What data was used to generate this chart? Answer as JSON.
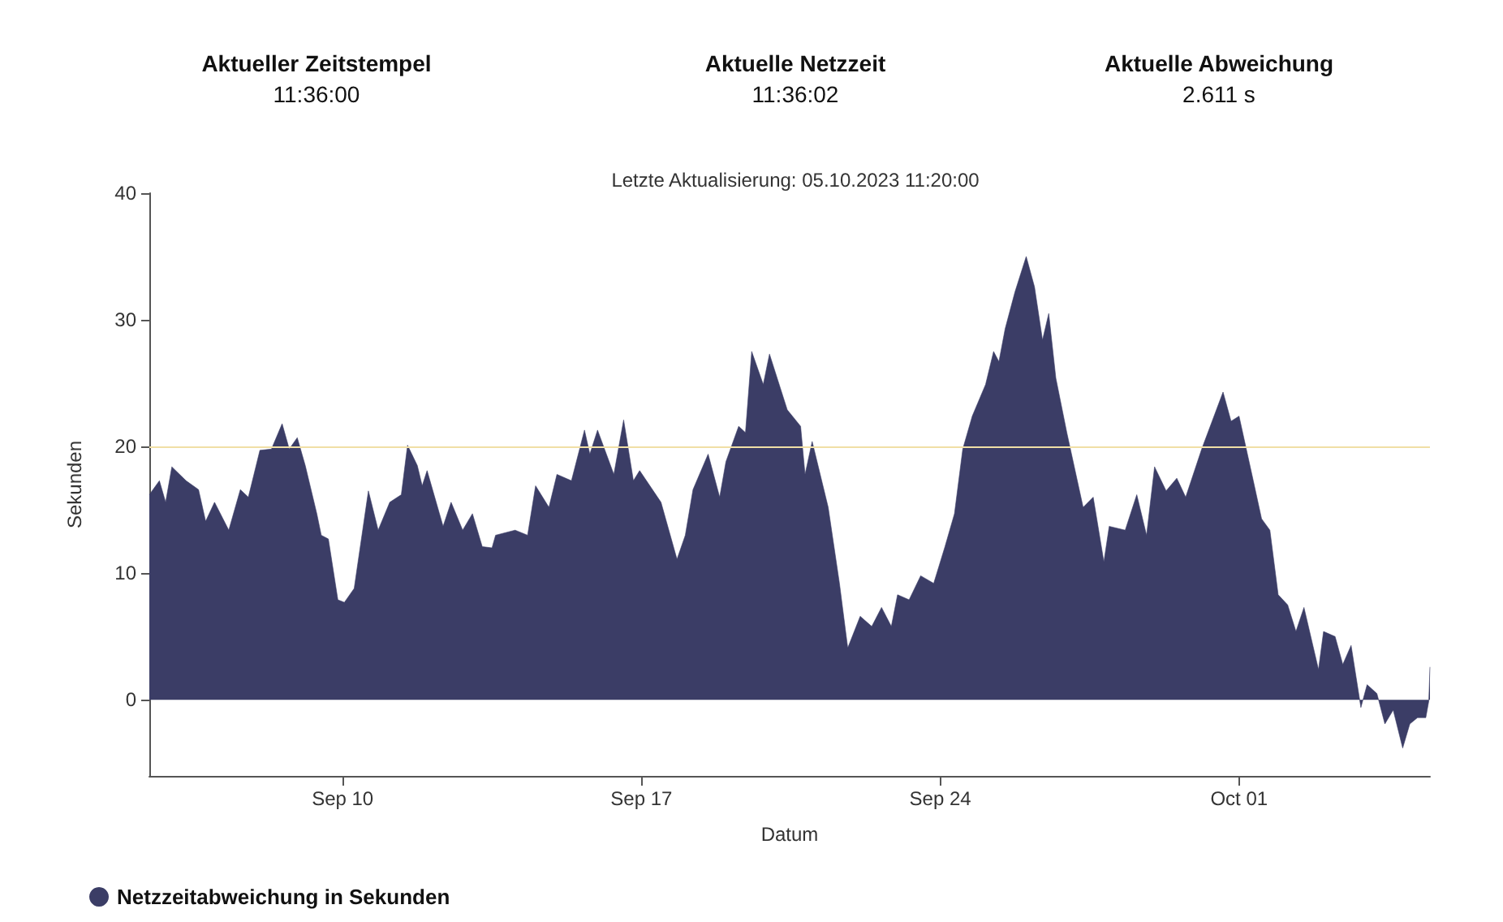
{
  "chart_data": {
    "type": "area",
    "xlabel": "Datum",
    "ylabel": "Sekunden",
    "annotations": [
      "Aktueller Zeitstempel",
      "11:36:00",
      "Aktuelle Netzzeit",
      "11:36:02",
      "Aktuelle Abweichung",
      "2.611 s",
      "Letzte Aktualisierung: 05.10.2023 11:20:00"
    ],
    "xlim": [
      "2023-09-05T11:20",
      "2023-10-05T11:20"
    ],
    "xticks": [
      {
        "value": "2023-09-10",
        "label": "Sep 10"
      },
      {
        "value": "2023-09-17",
        "label": "Sep 17"
      },
      {
        "value": "2023-09-24",
        "label": "Sep 24"
      },
      {
        "value": "2023-10-01",
        "label": "Oct 01"
      }
    ],
    "ylim": [
      -6,
      40
    ],
    "yticks": [
      0,
      10,
      20,
      30,
      40
    ],
    "grid": false,
    "legend": "bottom left",
    "marker": "none",
    "ref_lines": [
      {
        "axis": "y",
        "value": 20,
        "color": "#f0dfa6"
      }
    ],
    "series": [
      {
        "name": "Netzzeitabweichung in Sekunden",
        "color": "#3b3d66",
        "x": [
          "2023-09-05T11:20",
          "2023-09-05T17:00",
          "2023-09-05T20:30",
          "2023-09-06T00:00",
          "2023-09-06T08:00",
          "2023-09-06T15:00",
          "2023-09-06T19:00",
          "2023-09-07T00:00",
          "2023-09-07T08:00",
          "2023-09-07T14:30",
          "2023-09-07T19:00",
          "2023-09-08T01:30",
          "2023-09-08T08:00",
          "2023-09-08T14:00",
          "2023-09-08T18:00",
          "2023-09-08T22:30",
          "2023-09-09T03:00",
          "2023-09-09T09:30",
          "2023-09-09T12:00",
          "2023-09-09T16:00",
          "2023-09-09T21:20",
          "2023-09-10T01:00",
          "2023-09-10T06:30",
          "2023-09-10T14:30",
          "2023-09-10T20:00",
          "2023-09-11T02:30",
          "2023-09-11T09:00",
          "2023-09-11T12:30",
          "2023-09-11T18:00",
          "2023-09-11T20:45",
          "2023-09-11T23:30",
          "2023-09-12T08:30",
          "2023-09-12T13:00",
          "2023-09-12T19:30",
          "2023-09-13T01:00",
          "2023-09-13T06:30",
          "2023-09-13T12:00",
          "2023-09-13T14:00",
          "2023-09-14T01:00",
          "2023-09-14T08:00",
          "2023-09-14T12:30",
          "2023-09-14T20:00",
          "2023-09-15T00:30",
          "2023-09-15T08:40",
          "2023-09-15T16:00",
          "2023-09-15T19:00",
          "2023-09-15T23:20",
          "2023-09-16T08:30",
          "2023-09-16T14:00",
          "2023-09-16T19:30",
          "2023-09-16T23:00",
          "2023-09-17T11:00",
          "2023-09-17T20:00",
          "2023-09-18T00:40",
          "2023-09-18T05:00",
          "2023-09-18T13:30",
          "2023-09-18T20:00",
          "2023-09-18T23:30",
          "2023-09-19T06:40",
          "2023-09-19T10:30",
          "2023-09-19T14:00",
          "2023-09-19T20:30",
          "2023-09-20T00:00",
          "2023-09-20T10:00",
          "2023-09-20T17:30",
          "2023-09-20T20:00",
          "2023-09-21T00:00",
          "2023-09-21T09:00",
          "2023-09-21T15:20",
          "2023-09-21T20:00",
          "2023-09-22T03:00",
          "2023-09-22T09:30",
          "2023-09-22T15:00",
          "2023-09-22T20:30",
          "2023-09-23T00:00",
          "2023-09-23T06:30",
          "2023-09-23T13:00",
          "2023-09-23T20:20",
          "2023-09-24T02:40",
          "2023-09-24T08:00",
          "2023-09-24T12:40",
          "2023-09-24T18:00",
          "2023-09-25T01:30",
          "2023-09-25T06:00",
          "2023-09-25T09:00",
          "2023-09-25T12:30",
          "2023-09-25T18:00",
          "2023-09-26T00:20",
          "2023-09-26T05:00",
          "2023-09-26T09:30",
          "2023-09-26T13:00",
          "2023-09-26T17:00",
          "2023-09-26T23:10",
          "2023-09-27T08:20",
          "2023-09-27T14:00",
          "2023-09-27T20:00",
          "2023-09-27T23:00",
          "2023-09-28T08:00",
          "2023-09-28T14:30",
          "2023-09-28T20:00",
          "2023-09-29T00:30",
          "2023-09-29T07:00",
          "2023-09-29T13:00",
          "2023-09-29T18:00",
          "2023-09-30T03:00",
          "2023-09-30T15:00",
          "2023-09-30T19:30",
          "2023-10-01T00:00",
          "2023-10-01T08:00",
          "2023-10-01T12:40",
          "2023-10-01T17:20",
          "2023-10-01T22:00",
          "2023-10-02T03:20",
          "2023-10-02T08:00",
          "2023-10-02T12:30",
          "2023-10-02T20:40",
          "2023-10-02T23:30",
          "2023-10-03T06:00",
          "2023-10-03T10:20",
          "2023-10-03T15:00",
          "2023-10-03T20:30",
          "2023-10-04T00:00",
          "2023-10-04T05:30",
          "2023-10-04T10:00",
          "2023-10-04T14:40",
          "2023-10-04T20:00",
          "2023-10-05T00:00",
          "2023-10-05T04:20",
          "2023-10-05T09:00",
          "2023-10-05T10:40",
          "2023-10-05T11:20"
        ],
        "values": [
          16.2,
          17.3,
          15.6,
          18.4,
          17.3,
          16.6,
          14.1,
          15.6,
          13.4,
          16.6,
          16.0,
          19.7,
          19.8,
          21.8,
          19.8,
          20.7,
          18.5,
          14.7,
          13.0,
          12.7,
          7.9,
          7.7,
          8.8,
          16.5,
          13.4,
          15.6,
          16.2,
          20.1,
          18.5,
          16.9,
          18.1,
          13.7,
          15.6,
          13.4,
          14.7,
          12.1,
          12.0,
          13.0,
          13.4,
          13.0,
          16.9,
          15.2,
          17.8,
          17.3,
          21.3,
          19.4,
          21.3,
          17.8,
          22.1,
          17.3,
          18.1,
          15.6,
          11.1,
          13.0,
          16.6,
          19.4,
          16.0,
          18.8,
          21.6,
          21.1,
          27.5,
          24.9,
          27.3,
          22.9,
          21.6,
          17.8,
          20.4,
          15.2,
          9.2,
          4.1,
          6.6,
          5.8,
          7.3,
          5.8,
          8.3,
          7.9,
          9.8,
          9.2,
          12.1,
          14.7,
          19.8,
          22.4,
          24.9,
          27.5,
          26.7,
          29.3,
          32.2,
          35.0,
          32.6,
          28.4,
          30.5,
          25.4,
          21.1,
          15.2,
          16.0,
          10.9,
          13.7,
          13.4,
          16.2,
          13.0,
          18.4,
          16.5,
          17.5,
          16.0,
          19.8,
          24.3,
          22.0,
          22.4,
          17.3,
          14.3,
          13.4,
          8.3,
          7.5,
          5.4,
          7.3,
          2.4,
          5.4,
          5.0,
          2.8,
          4.3,
          -0.6,
          1.2,
          0.5,
          -1.9,
          -0.8,
          -3.8,
          -1.9,
          -1.4,
          -1.4,
          -0.1,
          2.6
        ]
      }
    ]
  }
}
